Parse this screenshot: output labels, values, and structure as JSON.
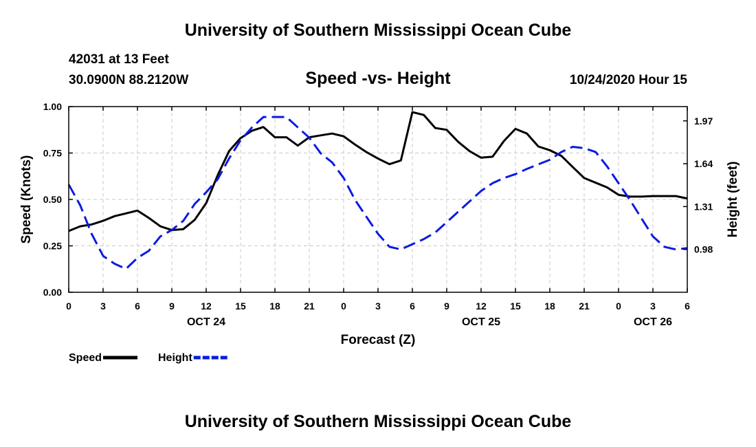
{
  "header": {
    "title": "University of Southern Mississippi Ocean Cube",
    "station": "42031 at 13 Feet",
    "coords": "30.0900N 88.2120W",
    "subtitle": "Speed -vs- Height",
    "date": "10/24/2020 Hour 15"
  },
  "footer": {
    "title": "University of Southern Mississippi Ocean Cube"
  },
  "chart_data": {
    "type": "line",
    "title": "Speed -vs- Height",
    "xlabel": "Forecast (Z)",
    "ylabel_left": "Speed (Knots)",
    "ylabel_right": "Height (feet)",
    "x_range_hours": [
      0,
      54
    ],
    "x_ticks": [
      {
        "h": 0,
        "label": "0"
      },
      {
        "h": 3,
        "label": "3"
      },
      {
        "h": 6,
        "label": "6"
      },
      {
        "h": 9,
        "label": "9"
      },
      {
        "h": 12,
        "label": "12"
      },
      {
        "h": 15,
        "label": "15"
      },
      {
        "h": 18,
        "label": "18"
      },
      {
        "h": 21,
        "label": "21"
      },
      {
        "h": 24,
        "label": "0"
      },
      {
        "h": 27,
        "label": "3"
      },
      {
        "h": 30,
        "label": "6"
      },
      {
        "h": 33,
        "label": "9"
      },
      {
        "h": 36,
        "label": "12"
      },
      {
        "h": 39,
        "label": "15"
      },
      {
        "h": 42,
        "label": "18"
      },
      {
        "h": 45,
        "label": "21"
      },
      {
        "h": 48,
        "label": "0"
      },
      {
        "h": 51,
        "label": "3"
      },
      {
        "h": 54,
        "label": "6"
      }
    ],
    "day_labels": [
      {
        "h": 12,
        "label": "OCT 24"
      },
      {
        "h": 36,
        "label": "OCT 25"
      },
      {
        "h": 51,
        "label": "OCT 26"
      }
    ],
    "y_left": {
      "min": 0,
      "max": 1.0,
      "ticks": [
        "0.00",
        "0.25",
        "0.50",
        "0.75",
        "1.00"
      ]
    },
    "y_right": {
      "min": 0.65,
      "max": 2.08,
      "ticks": [
        "0.98",
        "1.31",
        "1.64",
        "1.97"
      ]
    },
    "grid": true,
    "series": [
      {
        "name": "Speed",
        "color": "#000000",
        "style": "solid",
        "axis": "left",
        "x": [
          0,
          1,
          2,
          3,
          4,
          5,
          6,
          7,
          8,
          9,
          10,
          11,
          12,
          13,
          14,
          15,
          16,
          17,
          18,
          19,
          20,
          21,
          22,
          23,
          24,
          25,
          26,
          27,
          28,
          29,
          30,
          31,
          32,
          33,
          34,
          35,
          36,
          37,
          38,
          39,
          40,
          41,
          42,
          43,
          44,
          45,
          46,
          47,
          48,
          49,
          50,
          51,
          52,
          53,
          54
        ],
        "values": [
          0.33,
          0.355,
          0.365,
          0.385,
          0.41,
          0.425,
          0.44,
          0.4,
          0.355,
          0.335,
          0.34,
          0.39,
          0.48,
          0.63,
          0.76,
          0.83,
          0.87,
          0.89,
          0.835,
          0.835,
          0.79,
          0.835,
          0.845,
          0.855,
          0.84,
          0.795,
          0.755,
          0.72,
          0.69,
          0.71,
          0.97,
          0.955,
          0.885,
          0.875,
          0.81,
          0.76,
          0.725,
          0.73,
          0.815,
          0.88,
          0.855,
          0.785,
          0.765,
          0.735,
          0.675,
          0.615,
          0.59,
          0.565,
          0.525,
          0.515,
          0.515,
          0.518,
          0.518,
          0.518,
          0.505
        ]
      },
      {
        "name": "Height",
        "color": "#0a1be0",
        "style": "dashed",
        "axis": "right",
        "x": [
          0,
          1,
          2,
          3,
          4,
          5,
          6,
          7,
          8,
          9,
          10,
          11,
          12,
          13,
          14,
          15,
          16,
          17,
          18,
          19,
          20,
          21,
          22,
          23,
          24,
          25,
          26,
          27,
          28,
          29,
          30,
          31,
          32,
          33,
          34,
          35,
          36,
          37,
          38,
          39,
          40,
          41,
          42,
          43,
          44,
          45,
          46,
          47,
          48,
          49,
          50,
          51,
          52,
          53,
          54
        ],
        "values": [
          1.48,
          1.32,
          1.1,
          0.93,
          0.87,
          0.83,
          0.915,
          0.97,
          1.08,
          1.13,
          1.2,
          1.33,
          1.42,
          1.52,
          1.68,
          1.82,
          1.92,
          2.0,
          2.0,
          2.0,
          1.92,
          1.84,
          1.72,
          1.65,
          1.53,
          1.36,
          1.23,
          1.1,
          1.0,
          0.98,
          1.02,
          1.06,
          1.11,
          1.19,
          1.27,
          1.35,
          1.43,
          1.49,
          1.53,
          1.56,
          1.6,
          1.635,
          1.67,
          1.73,
          1.77,
          1.76,
          1.73,
          1.62,
          1.49,
          1.36,
          1.22,
          1.08,
          1.0,
          0.98,
          0.99
        ]
      }
    ],
    "legend": [
      {
        "name": "Speed",
        "color": "#000000",
        "style": "solid"
      },
      {
        "name": "Height",
        "color": "#0a1be0",
        "style": "dashed"
      }
    ],
    "legend_position": "bottom-left"
  }
}
